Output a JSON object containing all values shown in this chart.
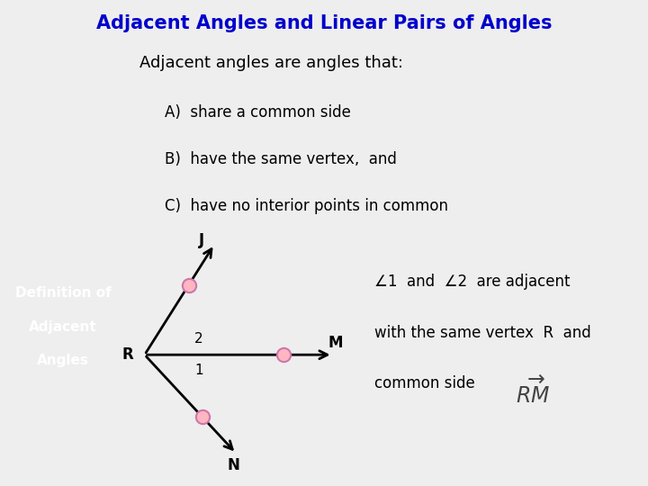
{
  "title": "Adjacent Angles and Linear Pairs of Angles",
  "title_color": "#0000CC",
  "title_bg": "#B05555",
  "title_border": "#7a3333",
  "sidebar_color": "#7B7FD4",
  "main_bg": "#FFFFFF",
  "outer_bg": "#EEEEEE",
  "definition_label_line1": "Definition of",
  "definition_label_line2": "Adjacent",
  "definition_label_line3": "Angles",
  "definition_label_color": "#FFFFFF",
  "body_title": "Adjacent angles are angles that:",
  "items": [
    "A)  share a common side",
    "B)  have the same vertex,  and",
    "C)  have no interior points in common"
  ],
  "item_color": "#000000",
  "body_title_color": "#000000",
  "dot_color": "#FFB6C1",
  "dot_edge_color": "#CC77AA",
  "line_color": "#000000"
}
